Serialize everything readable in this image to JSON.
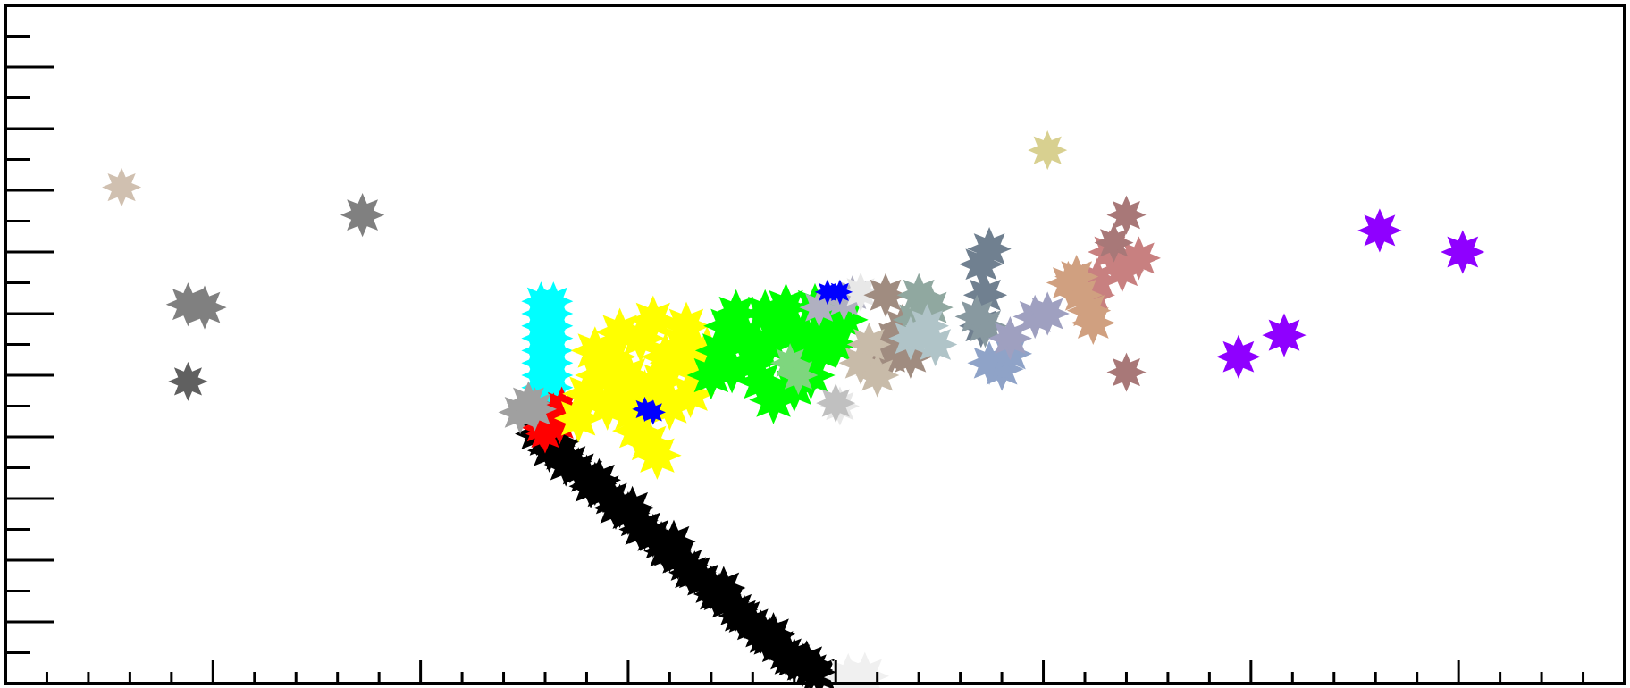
{
  "chart_data": {
    "type": "scatter",
    "title": "",
    "xlabel": "",
    "ylabel": "",
    "xlim": [
      0,
      39
    ],
    "ylim": [
      0,
      11
    ],
    "grid": false,
    "legend": "none",
    "x_major_ticks": [
      0,
      5,
      10,
      15,
      20,
      25,
      30,
      35,
      39
    ],
    "y_major_ticks": [
      1,
      2,
      3,
      4,
      5,
      6,
      7,
      8,
      9,
      10,
      11
    ],
    "series": [
      {
        "color": "#000000",
        "size": 8,
        "points": [
          [
            12.8,
            4.05
          ],
          [
            13.0,
            3.95
          ],
          [
            13.2,
            3.85
          ],
          [
            13.4,
            3.72
          ],
          [
            13.6,
            3.6
          ],
          [
            13.8,
            3.48
          ],
          [
            14.0,
            3.36
          ],
          [
            14.2,
            3.24
          ],
          [
            14.4,
            3.12
          ],
          [
            14.6,
            3.0
          ],
          [
            14.8,
            2.88
          ],
          [
            15.0,
            2.76
          ],
          [
            15.2,
            2.64
          ],
          [
            15.4,
            2.52
          ],
          [
            15.6,
            2.4
          ],
          [
            15.8,
            2.28
          ],
          [
            16.0,
            2.16
          ],
          [
            16.2,
            2.04
          ],
          [
            16.4,
            1.92
          ],
          [
            16.6,
            1.8
          ],
          [
            16.8,
            1.68
          ],
          [
            17.0,
            1.56
          ],
          [
            17.2,
            1.44
          ],
          [
            17.4,
            1.32
          ],
          [
            17.6,
            1.2
          ],
          [
            17.8,
            1.08
          ],
          [
            18.0,
            0.96
          ],
          [
            18.2,
            0.84
          ],
          [
            18.4,
            0.72
          ],
          [
            18.6,
            0.6
          ],
          [
            18.8,
            0.48
          ],
          [
            19.0,
            0.38
          ],
          [
            19.2,
            0.3
          ],
          [
            19.4,
            0.22
          ],
          [
            19.6,
            0.15
          ],
          [
            13.1,
            3.78
          ],
          [
            13.5,
            3.55
          ],
          [
            14.1,
            3.2
          ],
          [
            14.7,
            2.85
          ],
          [
            15.3,
            2.5
          ],
          [
            15.9,
            2.15
          ],
          [
            16.5,
            1.8
          ],
          [
            17.1,
            1.45
          ],
          [
            17.7,
            1.1
          ],
          [
            18.3,
            0.75
          ],
          [
            18.9,
            0.4
          ],
          [
            13.3,
            3.92
          ],
          [
            14.3,
            3.3
          ],
          [
            15.1,
            2.85
          ],
          [
            16.1,
            2.3
          ],
          [
            17.3,
            1.55
          ],
          [
            18.5,
            0.8
          ],
          [
            19.3,
            0.35
          ]
        ]
      },
      {
        "color": "#00ffff",
        "size": 7,
        "points": [
          [
            12.9,
            6.2
          ],
          [
            12.9,
            6.0
          ],
          [
            12.9,
            5.8
          ],
          [
            12.9,
            5.6
          ],
          [
            12.9,
            5.4
          ],
          [
            12.9,
            5.2
          ],
          [
            12.9,
            5.0
          ],
          [
            12.9,
            4.8
          ],
          [
            12.9,
            4.6
          ],
          [
            13.2,
            6.2
          ],
          [
            13.2,
            6.0
          ],
          [
            13.2,
            5.8
          ],
          [
            13.2,
            5.6
          ],
          [
            13.2,
            5.4
          ],
          [
            13.2,
            5.2
          ],
          [
            13.2,
            5.0
          ],
          [
            13.2,
            4.8
          ],
          [
            13.2,
            4.6
          ]
        ]
      },
      {
        "color": "#ff0000",
        "size": 7,
        "points": [
          [
            12.9,
            4.15
          ],
          [
            13.1,
            4.25
          ],
          [
            13.3,
            4.35
          ],
          [
            13.4,
            4.5
          ],
          [
            13.2,
            4.4
          ],
          [
            13.0,
            4.05
          ],
          [
            13.35,
            4.2
          ]
        ]
      },
      {
        "color": "#a0a0a0",
        "size": 8,
        "points": [
          [
            12.4,
            4.4
          ],
          [
            12.6,
            4.55
          ],
          [
            12.75,
            4.45
          ]
        ]
      },
      {
        "color": "#ffff00",
        "size": 9,
        "points": [
          [
            13.8,
            4.3
          ],
          [
            14.0,
            4.7
          ],
          [
            14.3,
            5.0
          ],
          [
            14.6,
            5.3
          ],
          [
            14.9,
            4.8
          ],
          [
            15.1,
            4.4
          ],
          [
            15.3,
            5.6
          ],
          [
            15.6,
            5.9
          ],
          [
            15.8,
            4.9
          ],
          [
            16.1,
            5.2
          ],
          [
            16.3,
            5.5
          ],
          [
            16.5,
            4.7
          ],
          [
            14.5,
            4.5
          ],
          [
            15.2,
            4.1
          ],
          [
            15.5,
            3.9
          ],
          [
            15.7,
            3.7
          ],
          [
            16.0,
            4.5
          ],
          [
            16.4,
            5.8
          ],
          [
            15.0,
            5.0
          ],
          [
            14.8,
            5.7
          ],
          [
            16.7,
            5.1
          ],
          [
            16.9,
            5.4
          ],
          [
            14.2,
            5.4
          ],
          [
            15.4,
            4.7
          ],
          [
            15.9,
            5.3
          ]
        ]
      },
      {
        "color": "#00ff00",
        "size": 9,
        "points": [
          [
            17.0,
            5.0
          ],
          [
            17.2,
            5.4
          ],
          [
            17.4,
            5.8
          ],
          [
            17.6,
            6.0
          ],
          [
            17.8,
            5.6
          ],
          [
            18.0,
            5.2
          ],
          [
            18.2,
            4.9
          ],
          [
            18.4,
            5.5
          ],
          [
            18.6,
            5.9
          ],
          [
            18.8,
            6.1
          ],
          [
            19.0,
            5.7
          ],
          [
            19.2,
            5.3
          ],
          [
            19.4,
            5.0
          ],
          [
            19.6,
            5.4
          ],
          [
            19.8,
            5.8
          ],
          [
            20.0,
            5.5
          ],
          [
            18.5,
            4.6
          ],
          [
            19.0,
            4.8
          ],
          [
            17.5,
            5.1
          ],
          [
            18.3,
            6.0
          ],
          [
            20.2,
            5.9
          ],
          [
            19.5,
            6.1
          ],
          [
            18.1,
            5.5
          ],
          [
            19.3,
            5.6
          ]
        ]
      },
      {
        "color": "#7ed67e",
        "size": 7,
        "points": [
          [
            18.9,
            5.2
          ],
          [
            19.1,
            5.0
          ]
        ]
      },
      {
        "color": "#b0b0c0",
        "size": 7,
        "points": [
          [
            19.6,
            6.1
          ],
          [
            20.2,
            6.2
          ],
          [
            20.4,
            6.3
          ]
        ]
      },
      {
        "color": "#e8e8e8",
        "size": 7,
        "points": [
          [
            20.6,
            6.35
          ],
          [
            20.1,
            4.5
          ]
        ]
      },
      {
        "color": "#c0c0c0",
        "size": 7,
        "points": [
          [
            20.0,
            4.55
          ]
        ]
      },
      {
        "color": "#a08c80",
        "size": 8,
        "points": [
          [
            21.2,
            6.3
          ],
          [
            21.6,
            5.8
          ],
          [
            21.3,
            5.3
          ],
          [
            21.8,
            5.3
          ],
          [
            21.4,
            5.6
          ]
        ]
      },
      {
        "color": "#c8bba9",
        "size": 8,
        "points": [
          [
            20.8,
            5.5
          ],
          [
            20.6,
            5.2
          ],
          [
            21.0,
            5.0
          ]
        ]
      },
      {
        "color": "#90a8a0",
        "size": 8,
        "points": [
          [
            22.0,
            6.3
          ],
          [
            22.3,
            6.1
          ],
          [
            21.9,
            5.9
          ]
        ]
      },
      {
        "color": "#b0c4c8",
        "size": 8,
        "points": [
          [
            22.2,
            5.8
          ],
          [
            22.4,
            5.5
          ],
          [
            21.8,
            5.6
          ]
        ]
      },
      {
        "color": "#708090",
        "size": 8,
        "points": [
          [
            23.7,
            7.05
          ],
          [
            23.5,
            6.8
          ],
          [
            23.6,
            6.3
          ],
          [
            23.5,
            5.8
          ]
        ]
      },
      {
        "color": "#8899a0",
        "size": 8,
        "points": [
          [
            23.6,
            5.8
          ],
          [
            23.4,
            5.95
          ]
        ]
      },
      {
        "color": "#8fa3c8",
        "size": 8,
        "points": [
          [
            24.0,
            5.1
          ],
          [
            23.7,
            5.2
          ],
          [
            24.2,
            5.35
          ]
        ]
      },
      {
        "color": "#9fa0c0",
        "size": 8,
        "points": [
          [
            24.2,
            5.6
          ],
          [
            24.8,
            5.95
          ],
          [
            25.1,
            6.0
          ]
        ]
      },
      {
        "color": "#d8d090",
        "size": 7,
        "points": [
          [
            25.1,
            8.65
          ]
        ]
      },
      {
        "color": "#c88080",
        "size": 8,
        "points": [
          [
            26.3,
            6.55
          ],
          [
            26.6,
            7.0
          ],
          [
            26.9,
            6.7
          ],
          [
            27.3,
            6.9
          ],
          [
            26.2,
            6.3
          ]
        ]
      },
      {
        "color": "#d0a080",
        "size": 8,
        "points": [
          [
            25.6,
            6.5
          ],
          [
            25.9,
            6.3
          ],
          [
            26.1,
            6.05
          ],
          [
            26.2,
            5.85
          ],
          [
            25.8,
            6.6
          ]
        ]
      },
      {
        "color": "#a87878",
        "size": 7,
        "points": [
          [
            27.0,
            7.6
          ],
          [
            26.7,
            7.15
          ],
          [
            27.0,
            5.05
          ]
        ]
      },
      {
        "color": "#8f00ff",
        "size": 8,
        "points": [
          [
            29.7,
            5.3
          ],
          [
            30.8,
            5.65
          ],
          [
            33.1,
            7.35
          ],
          [
            35.1,
            7.0
          ]
        ]
      },
      {
        "color": "#d0c0b0",
        "size": 7,
        "points": [
          [
            2.8,
            8.05
          ]
        ]
      },
      {
        "color": "#808080",
        "size": 8,
        "points": [
          [
            8.6,
            7.6
          ],
          [
            4.4,
            6.15
          ],
          [
            4.8,
            6.1
          ]
        ]
      },
      {
        "color": "#606060",
        "size": 7,
        "points": [
          [
            4.4,
            4.9
          ]
        ]
      },
      {
        "color": "#0000ff",
        "size": 4,
        "points": [
          [
            15.4,
            4.45
          ],
          [
            15.6,
            4.4
          ],
          [
            19.8,
            6.35
          ],
          [
            20.1,
            6.35
          ]
        ]
      },
      {
        "color": "#f0f0f0",
        "size": 9,
        "points": [
          [
            20.3,
            0.1
          ],
          [
            20.7,
            0.12
          ]
        ]
      }
    ]
  }
}
